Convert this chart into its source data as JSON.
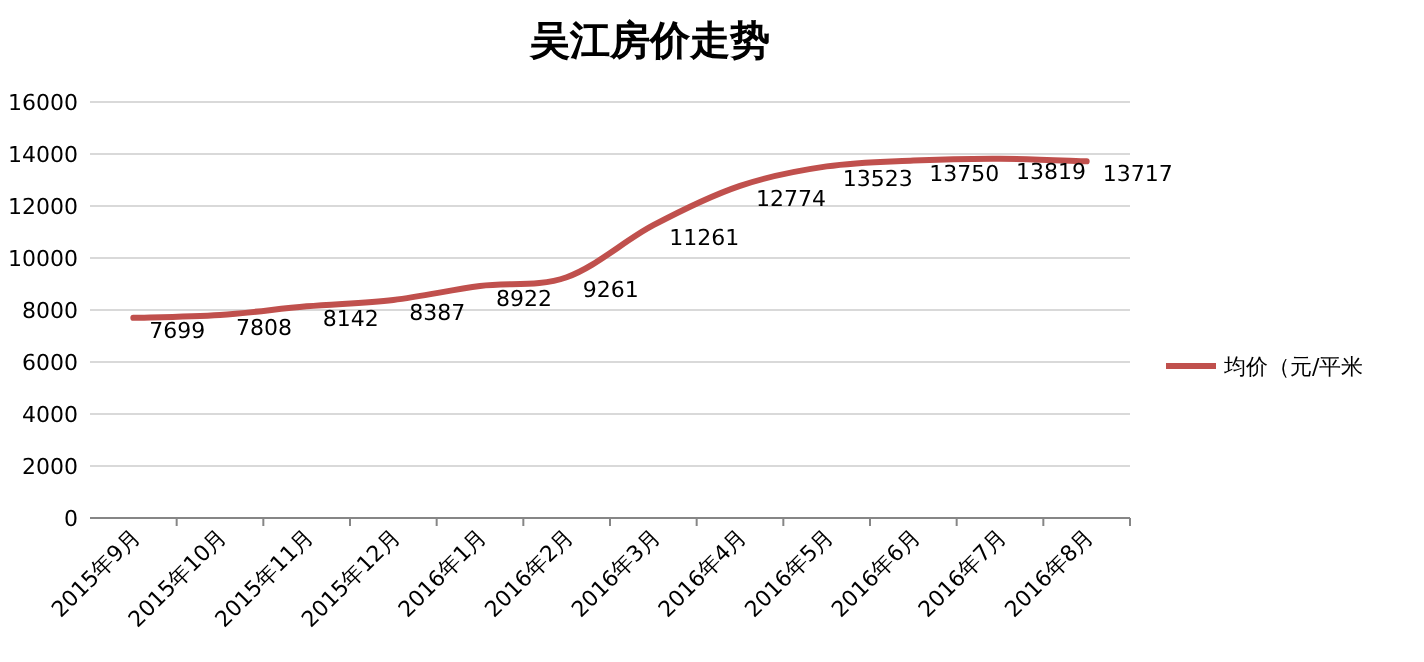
{
  "chart_data": {
    "type": "line",
    "title": "吴江房价走势",
    "categories": [
      "2015年9月",
      "2015年10月",
      "2015年11月",
      "2015年12月",
      "2016年1月",
      "2016年2月",
      "2016年3月",
      "2016年4月",
      "2016年5月",
      "2016年6月",
      "2016年7月",
      "2016年8月"
    ],
    "series": [
      {
        "name": "均价（元/平米",
        "color": "#c0504d",
        "values": [
          7699,
          7808,
          8142,
          8387,
          8922,
          9261,
          11261,
          12774,
          13523,
          13750,
          13819,
          13717
        ]
      }
    ],
    "ylim": [
      0,
      16000
    ],
    "yticks": [
      0,
      2000,
      4000,
      6000,
      8000,
      10000,
      12000,
      14000,
      16000
    ],
    "grid": "y",
    "legend": "right",
    "data_labels": true
  }
}
